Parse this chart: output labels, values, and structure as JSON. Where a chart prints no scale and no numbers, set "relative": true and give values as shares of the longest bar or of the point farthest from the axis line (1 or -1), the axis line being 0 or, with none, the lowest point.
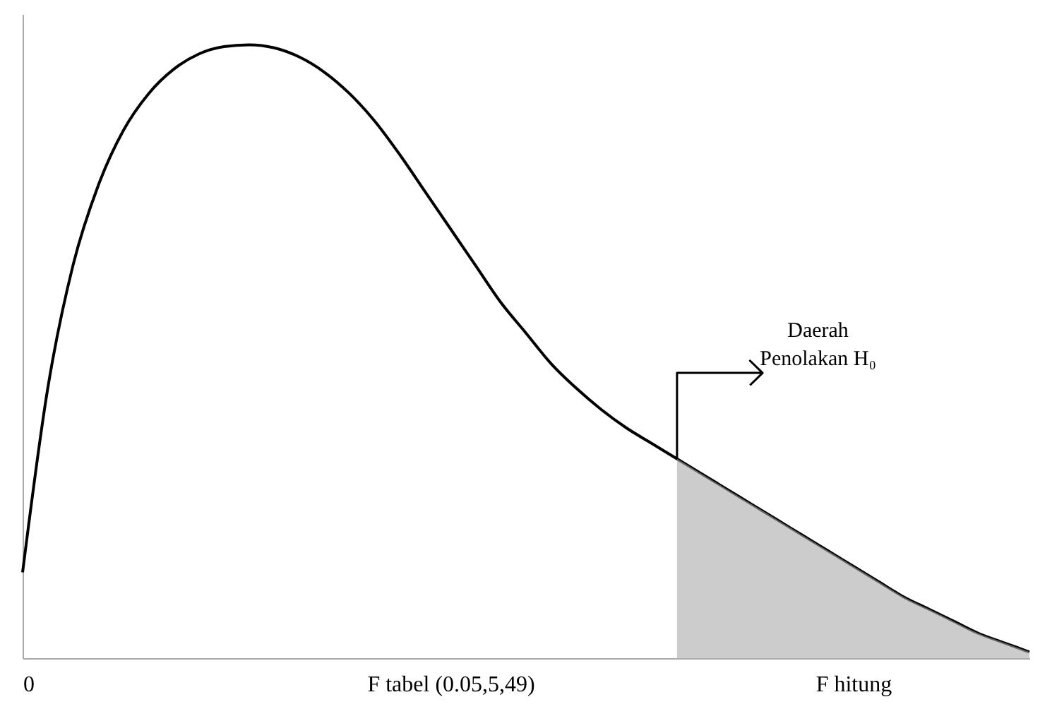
{
  "chart_data": {
    "type": "line",
    "relative": true,
    "categories": [
      "0",
      null,
      null,
      null,
      null,
      null,
      null,
      null,
      null,
      null,
      null,
      null,
      null,
      null,
      null,
      null,
      null,
      "F tabel (0.05,5,49)",
      null,
      null,
      null,
      null,
      null,
      null,
      null,
      null,
      null,
      null,
      null,
      null,
      null,
      null,
      null,
      "F hitung",
      null,
      null,
      null,
      null,
      null,
      null,
      null
    ],
    "series": [
      {
        "color": "#000000",
        "values": [
          0.14,
          0.44,
          0.64,
          0.77,
          0.86,
          0.92,
          0.96,
          0.985,
          0.997,
          1.0,
          0.995,
          0.98,
          0.955,
          0.92,
          0.875,
          0.82,
          0.76,
          0.7,
          0.64,
          0.58,
          0.53,
          0.48,
          0.44,
          0.405,
          0.375,
          0.35,
          0.325,
          0.3,
          0.275,
          0.25,
          0.225,
          0.2,
          0.175,
          0.15,
          0.125,
          0.1,
          0.08,
          0.06,
          0.04,
          0.025,
          0.01
        ]
      },
      {
        "type": "area",
        "color": "#aaaaaa",
        "values": [
          null,
          null,
          null,
          null,
          null,
          null,
          null,
          null,
          null,
          null,
          null,
          null,
          null,
          null,
          null,
          null,
          null,
          null,
          null,
          null,
          null,
          null,
          null,
          null,
          null,
          null,
          0.325,
          0.3,
          0.275,
          0.25,
          0.225,
          0.2,
          0.175,
          0.15,
          0.125,
          0.1,
          0.08,
          0.06,
          0.04,
          0.025,
          0.01
        ]
      }
    ],
    "annotations": [
      "Daerah\nPenolakan H₀"
    ]
  }
}
